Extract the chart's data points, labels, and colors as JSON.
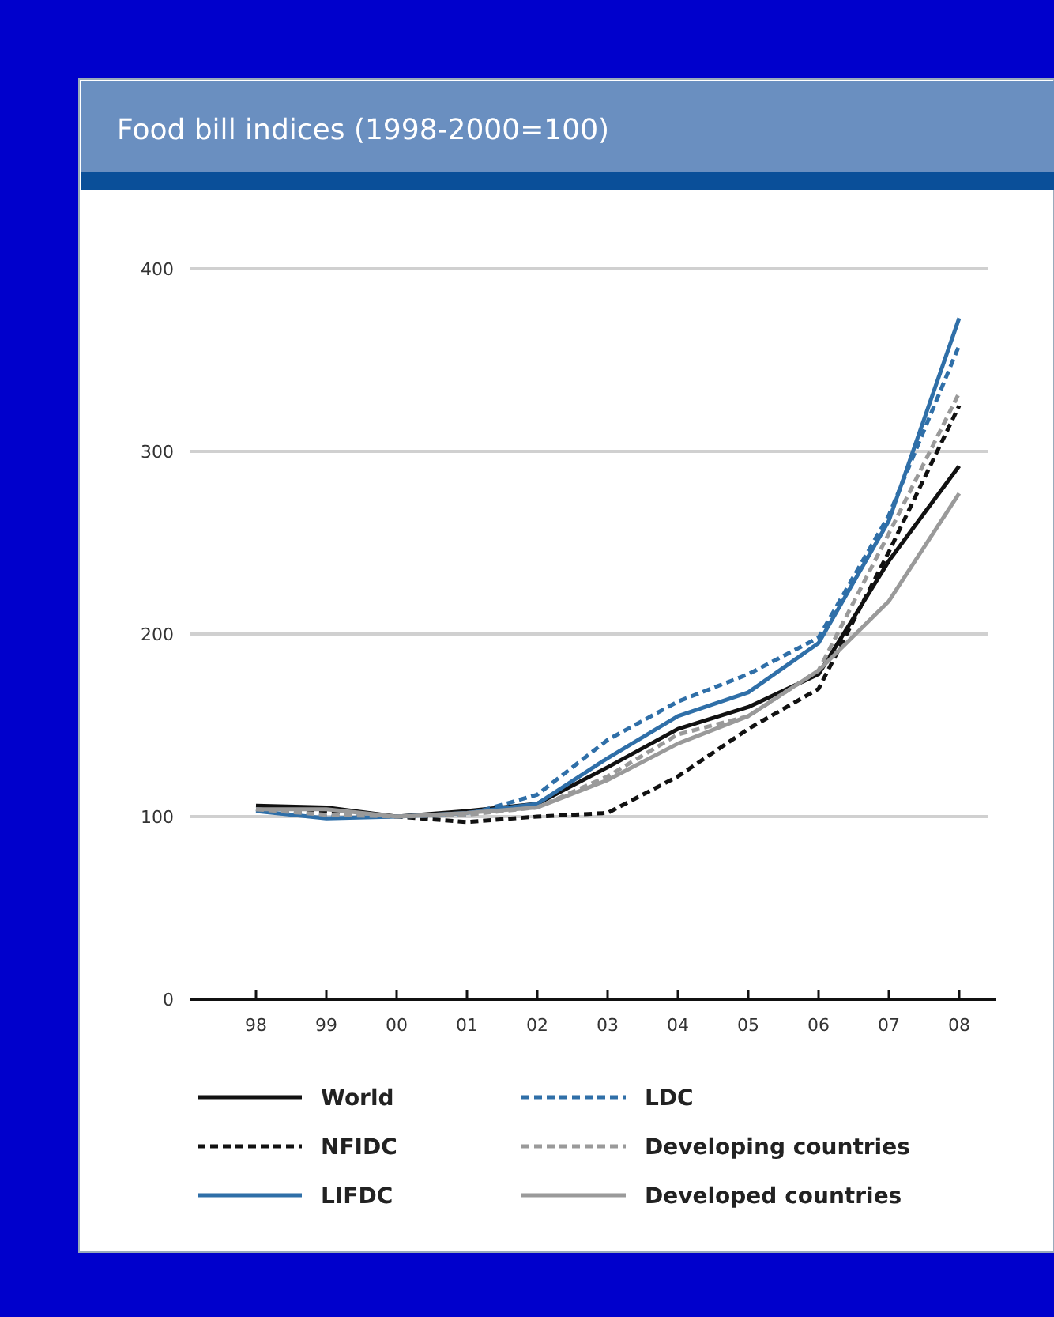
{
  "chart_data": {
    "type": "line",
    "title": "Food bill indices (1998-2000=100)",
    "categories": [
      "98",
      "99",
      "00",
      "01",
      "02",
      "03",
      "04",
      "05",
      "06",
      "07",
      "08"
    ],
    "series": [
      {
        "name": "World",
        "color": "#111111",
        "line_style": "solid",
        "values": [
          106,
          105,
          100,
          103,
          107,
          127,
          148,
          160,
          178,
          240,
          292
        ]
      },
      {
        "name": "NFIDC",
        "color": "#111111",
        "line_style": "dashed",
        "values": [
          104,
          103,
          100,
          97,
          100,
          102,
          122,
          148,
          170,
          245,
          325
        ]
      },
      {
        "name": "LIFDC",
        "color": "#2f6fa8",
        "line_style": "solid",
        "values": [
          103,
          99,
          100,
          102,
          107,
          132,
          155,
          168,
          195,
          262,
          373
        ]
      },
      {
        "name": "LDC",
        "color": "#2f6fa8",
        "line_style": "dashed",
        "values": [
          104,
          100,
          100,
          101,
          112,
          142,
          163,
          178,
          198,
          265,
          358
        ]
      },
      {
        "name": "Developing countries",
        "color": "#9a9a9a",
        "line_style": "dashed",
        "values": [
          104,
          101,
          100,
          101,
          105,
          122,
          145,
          155,
          180,
          255,
          332
        ]
      },
      {
        "name": "Developed countries",
        "color": "#9a9a9a",
        "line_style": "solid",
        "values": [
          104,
          104,
          100,
          102,
          105,
          120,
          140,
          155,
          180,
          218,
          277
        ]
      }
    ],
    "ylim": [
      0,
      400
    ],
    "yticks": [
      0,
      100,
      200,
      300,
      400
    ],
    "grid": "y",
    "legend": "bottom"
  }
}
